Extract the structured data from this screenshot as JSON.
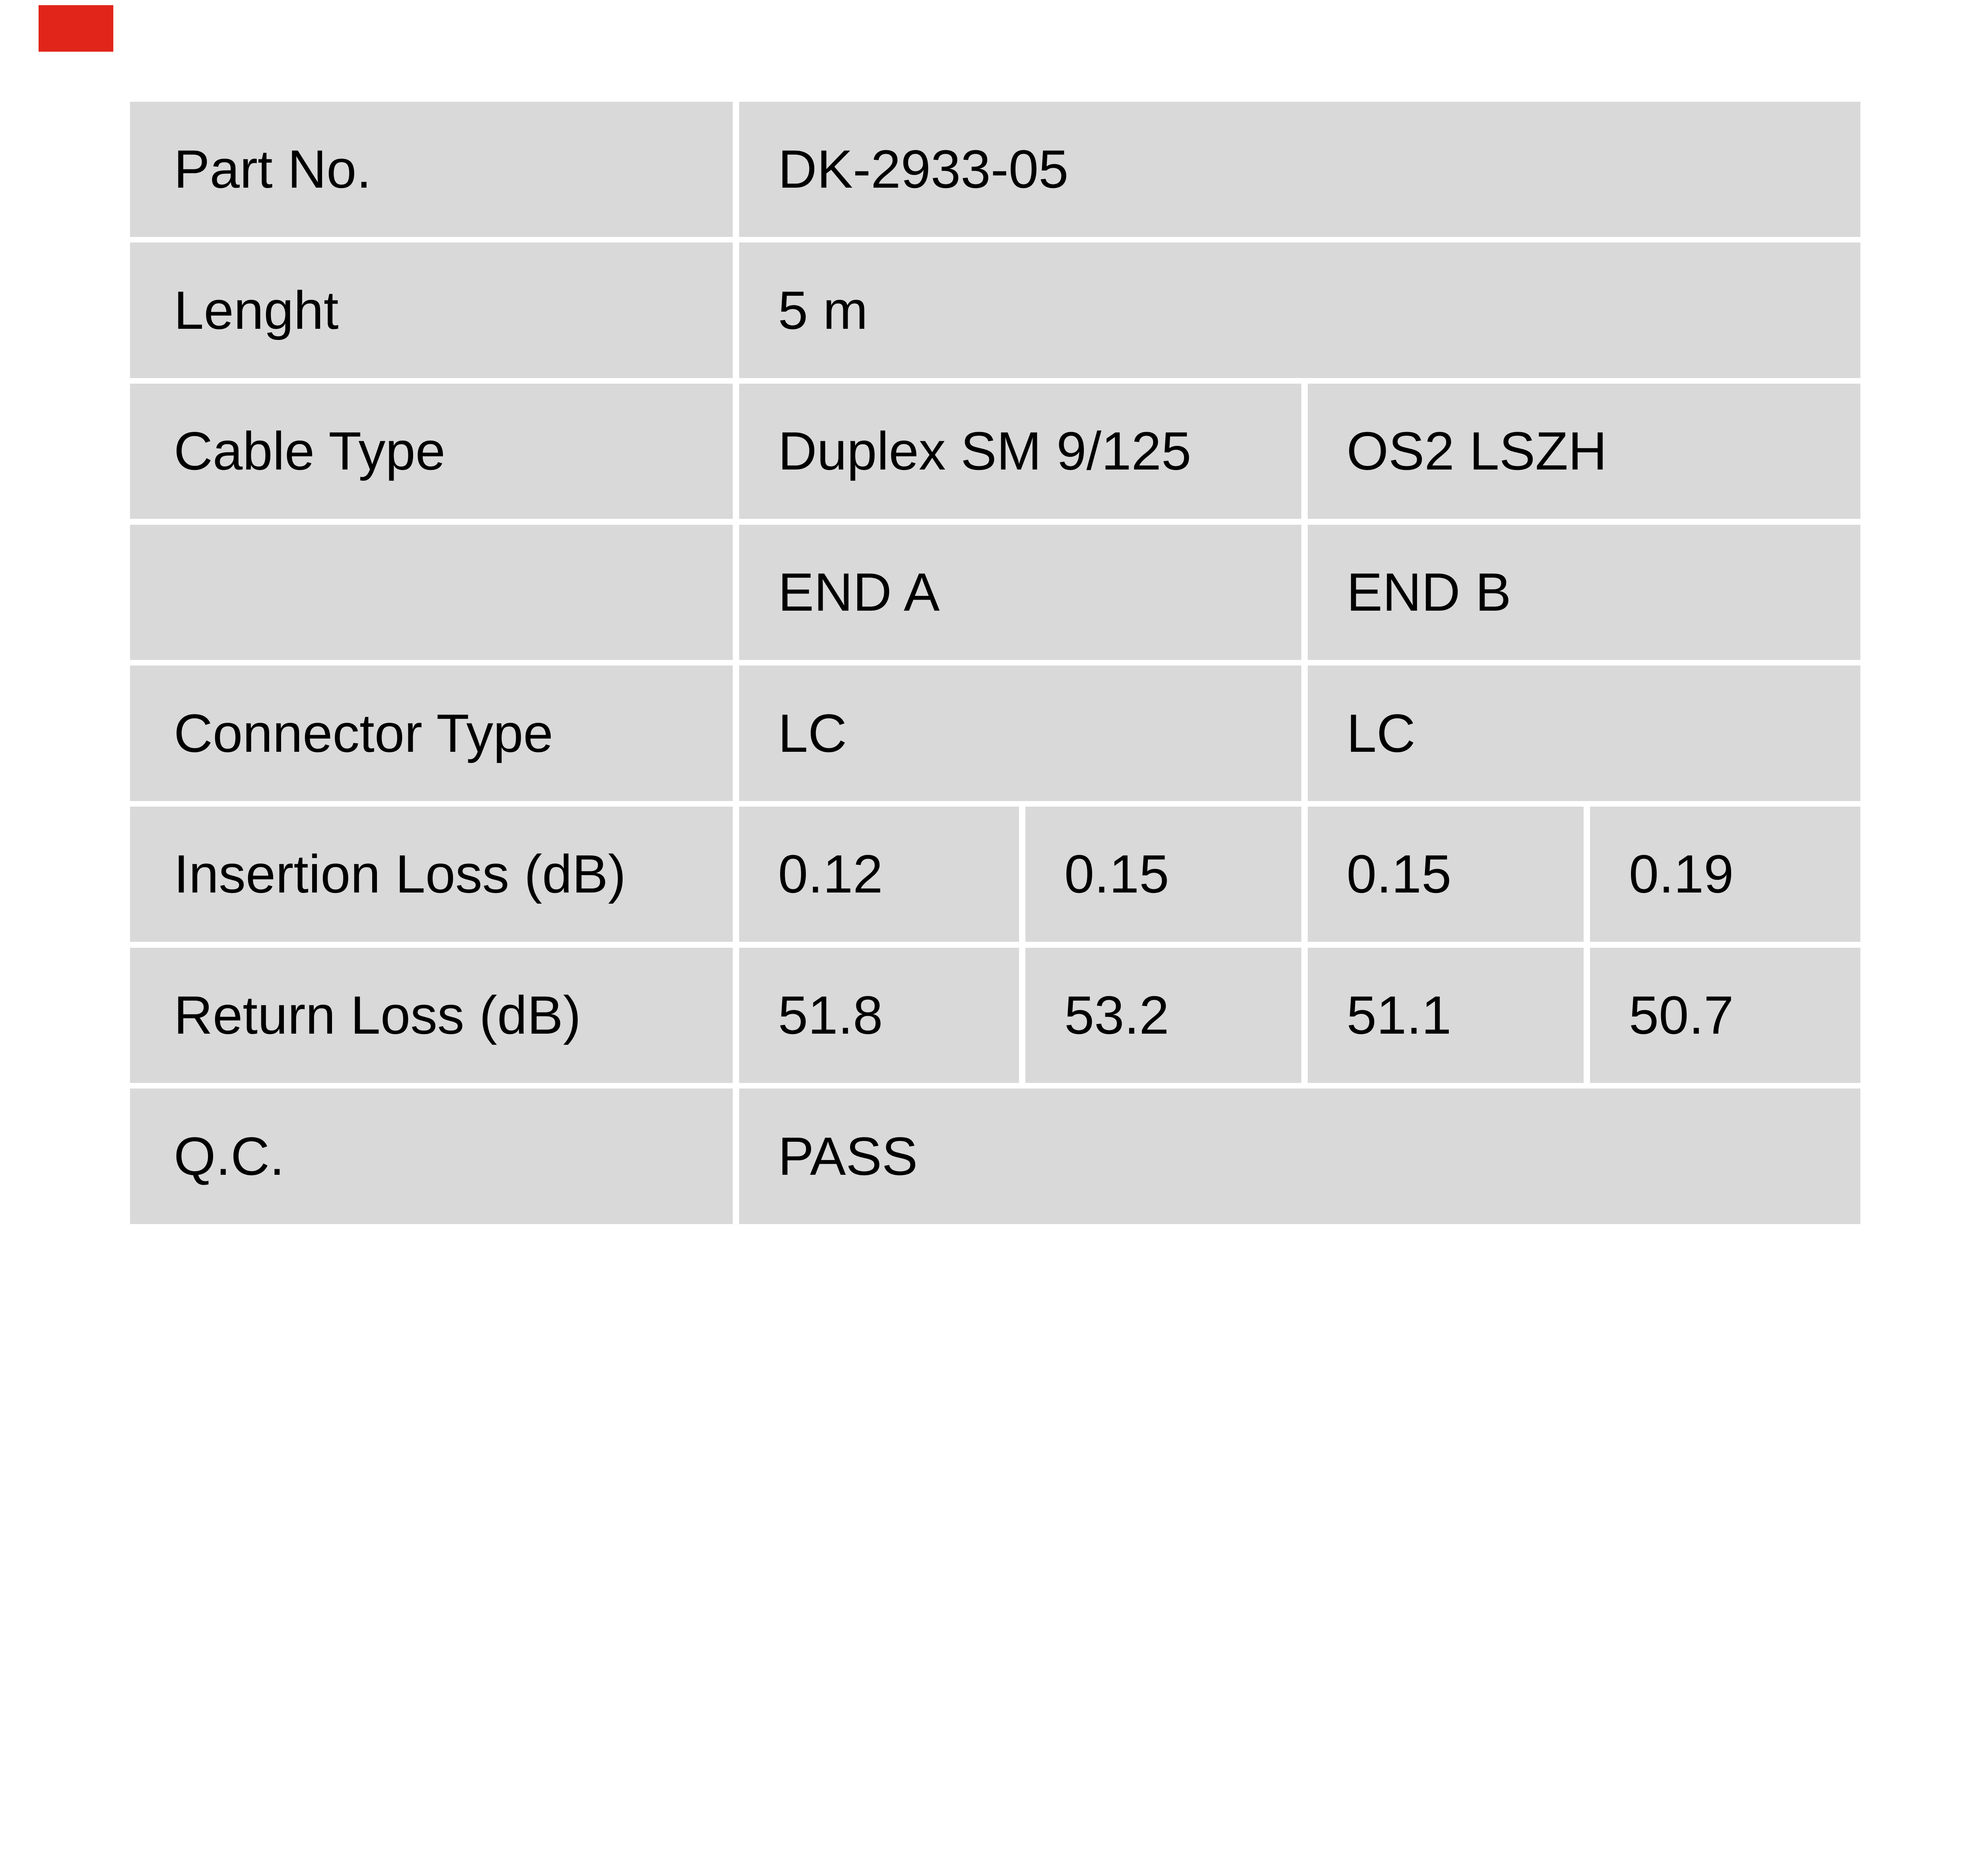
{
  "page": {
    "background_color": "#ffffff"
  },
  "brand_mark": {
    "color": "#e1251b"
  },
  "table": {
    "cell_background_color": "#d9d9d9",
    "text_color": "#000000",
    "rows": [
      {
        "label": "Part No.",
        "values": [
          {
            "text": "DK-2933-05",
            "span": 4
          }
        ]
      },
      {
        "label": "Lenght",
        "values": [
          {
            "text": "5 m",
            "span": 4
          }
        ]
      },
      {
        "label": "Cable Type",
        "values": [
          {
            "text": "Duplex SM 9/125",
            "span": 2
          },
          {
            "text": "OS2 LSZH",
            "span": 2
          }
        ]
      },
      {
        "label": "",
        "values": [
          {
            "text": "END A",
            "span": 2
          },
          {
            "text": "END B",
            "span": 2
          }
        ]
      },
      {
        "label": "Connector Type",
        "values": [
          {
            "text": "LC",
            "span": 2
          },
          {
            "text": "LC",
            "span": 2
          }
        ]
      },
      {
        "label": "Insertion Loss (dB)",
        "values": [
          {
            "text": "0.12",
            "span": 1
          },
          {
            "text": "0.15",
            "span": 1
          },
          {
            "text": "0.15",
            "span": 1
          },
          {
            "text": "0.19",
            "span": 1
          }
        ]
      },
      {
        "label": "Return Loss (dB)",
        "values": [
          {
            "text": "51.8",
            "span": 1
          },
          {
            "text": "53.2",
            "span": 1
          },
          {
            "text": "51.1",
            "span": 1
          },
          {
            "text": "50.7",
            "span": 1
          }
        ]
      },
      {
        "label": "Q.C.",
        "values": [
          {
            "text": "PASS",
            "span": 4
          }
        ]
      }
    ]
  }
}
